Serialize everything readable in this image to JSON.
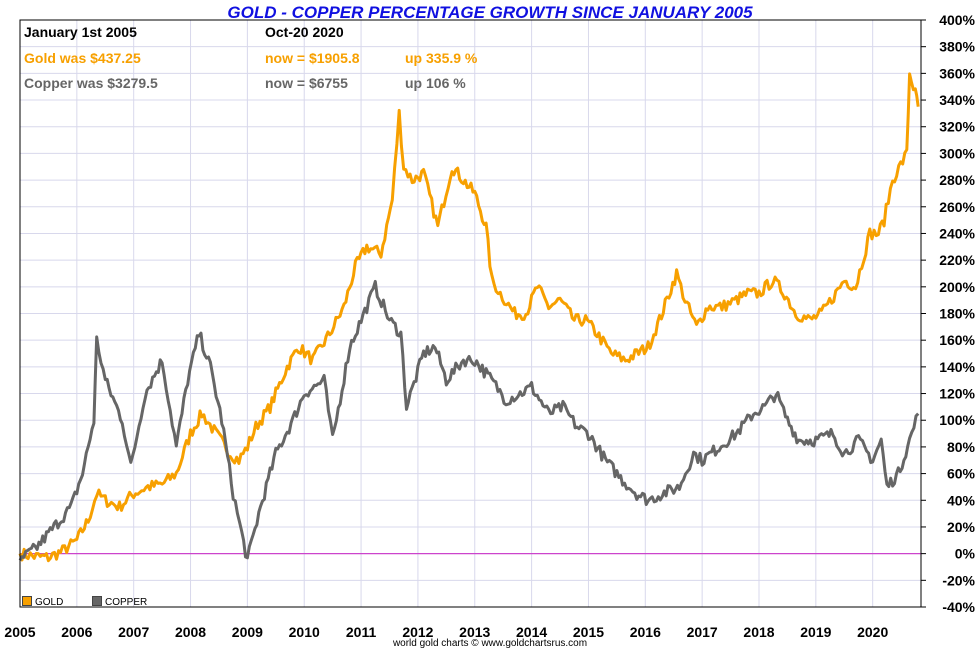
{
  "title": "GOLD - COPPER PERCENTAGE GROWTH SINCE JANUARY 2005",
  "info": {
    "start_label": "January 1st 2005",
    "end_label": "Oct-20  2020",
    "gold_was": "Gold was $437.25",
    "gold_now": "now = $1905.8",
    "gold_up": "up 335.9 %",
    "copper_was": "Copper was $3279.5",
    "copper_now": "now = $6755",
    "copper_up": "up 106 %"
  },
  "legend": {
    "gold": "GOLD",
    "copper": "COPPER"
  },
  "footer": "world gold charts © www.goldchartsrus.com",
  "colors": {
    "gold": "#f7a000",
    "copper": "#666666",
    "zero_line": "#cc44cc",
    "grid": "#d8d8ec"
  },
  "chart_data": {
    "type": "line",
    "title": "GOLD - COPPER PERCENTAGE GROWTH SINCE JANUARY 2005",
    "xlabel": "",
    "ylabel": "",
    "xlim": [
      2005,
      2020.85
    ],
    "ylim": [
      -40,
      400
    ],
    "x_ticks": [
      "2005",
      "2006",
      "2007",
      "2008",
      "2009",
      "2010",
      "2011",
      "2012",
      "2013",
      "2014",
      "2015",
      "2016",
      "2017",
      "2018",
      "2019",
      "2020"
    ],
    "y_ticks": [
      "400%",
      "380%",
      "360%",
      "340%",
      "320%",
      "300%",
      "280%",
      "260%",
      "240%",
      "220%",
      "200%",
      "180%",
      "160%",
      "140%",
      "120%",
      "100%",
      "80%",
      "60%",
      "40%",
      "20%",
      "0%",
      "-20%",
      "-40%"
    ],
    "y_tick_values": [
      400,
      380,
      360,
      340,
      320,
      300,
      280,
      260,
      240,
      220,
      200,
      180,
      160,
      140,
      120,
      100,
      80,
      60,
      40,
      20,
      0,
      -20,
      -40
    ],
    "series": [
      {
        "name": "GOLD",
        "x": [
          2005.0,
          2005.25,
          2005.5,
          2005.75,
          2006.0,
          2006.2,
          2006.35,
          2006.5,
          2006.75,
          2007.0,
          2007.25,
          2007.5,
          2007.75,
          2008.0,
          2008.2,
          2008.45,
          2008.7,
          2008.85,
          2009.0,
          2009.15,
          2009.4,
          2009.7,
          2009.9,
          2010.15,
          2010.45,
          2010.7,
          2010.9,
          2011.1,
          2011.35,
          2011.55,
          2011.67,
          2011.75,
          2011.9,
          2012.1,
          2012.35,
          2012.6,
          2012.8,
          2013.0,
          2013.2,
          2013.3,
          2013.45,
          2013.7,
          2013.9,
          2014.1,
          2014.3,
          2014.5,
          2014.75,
          2014.95,
          2015.15,
          2015.4,
          2015.65,
          2015.85,
          2016.05,
          2016.25,
          2016.55,
          2016.7,
          2016.9,
          2017.1,
          2017.35,
          2017.6,
          2017.8,
          2018.0,
          2018.25,
          2018.45,
          2018.65,
          2018.9,
          2019.1,
          2019.35,
          2019.5,
          2019.7,
          2019.95,
          2020.1,
          2020.2,
          2020.35,
          2020.6,
          2020.65,
          2020.75,
          2020.8
        ],
        "values": [
          0,
          -2,
          -3,
          2,
          10,
          25,
          45,
          40,
          35,
          45,
          50,
          52,
          60,
          90,
          105,
          90,
          75,
          70,
          80,
          95,
          110,
          140,
          155,
          145,
          165,
          185,
          215,
          230,
          225,
          265,
          330,
          290,
          280,
          285,
          245,
          290,
          280,
          270,
          245,
          205,
          195,
          180,
          180,
          200,
          185,
          190,
          175,
          175,
          165,
          150,
          145,
          150,
          155,
          175,
          210,
          190,
          170,
          185,
          185,
          190,
          195,
          195,
          205,
          195,
          180,
          175,
          180,
          195,
          205,
          200,
          240,
          240,
          250,
          280,
          300,
          360,
          345,
          335
        ]
      },
      {
        "name": "COPPER",
        "x": [
          2005.0,
          2005.3,
          2005.6,
          2005.9,
          2006.1,
          2006.3,
          2006.35,
          2006.5,
          2006.8,
          2006.95,
          2007.2,
          2007.5,
          2007.75,
          2007.95,
          2008.15,
          2008.35,
          2008.55,
          2008.75,
          2008.9,
          2009.0,
          2009.2,
          2009.5,
          2009.8,
          2010.0,
          2010.35,
          2010.5,
          2010.8,
          2011.1,
          2011.25,
          2011.5,
          2011.7,
          2011.8,
          2012.1,
          2012.3,
          2012.5,
          2012.8,
          2013.0,
          2013.3,
          2013.55,
          2013.8,
          2014.0,
          2014.3,
          2014.55,
          2014.8,
          2015.0,
          2015.3,
          2015.6,
          2015.85,
          2016.05,
          2016.3,
          2016.6,
          2016.85,
          2017.0,
          2017.3,
          2017.6,
          2017.9,
          2018.1,
          2018.3,
          2018.5,
          2018.7,
          2019.0,
          2019.3,
          2019.5,
          2019.75,
          2020.0,
          2020.15,
          2020.25,
          2020.45,
          2020.65,
          2020.8
        ],
        "values": [
          -5,
          5,
          20,
          35,
          60,
          100,
          160,
          130,
          100,
          65,
          120,
          145,
          80,
          130,
          165,
          140,
          100,
          45,
          15,
          -5,
          30,
          75,
          100,
          120,
          130,
          85,
          155,
          185,
          200,
          175,
          165,
          110,
          150,
          155,
          130,
          145,
          145,
          130,
          115,
          120,
          125,
          105,
          110,
          95,
          90,
          70,
          55,
          45,
          40,
          45,
          50,
          75,
          70,
          80,
          90,
          105,
          110,
          120,
          100,
          85,
          85,
          90,
          75,
          85,
          70,
          85,
          50,
          60,
          85,
          105
        ]
      }
    ]
  }
}
